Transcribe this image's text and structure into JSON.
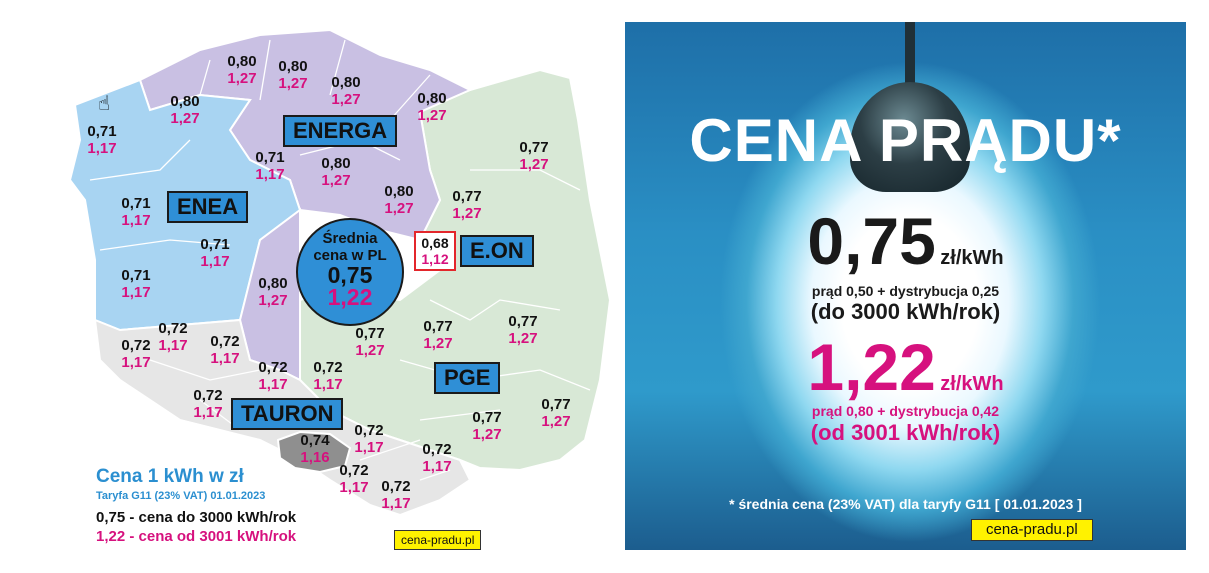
{
  "map": {
    "zones": [
      {
        "id": "energa",
        "label": "ENERGA",
        "color": "#c9c0e3"
      },
      {
        "id": "enea",
        "label": "ENEA",
        "color": "#a8d4f2"
      },
      {
        "id": "eon",
        "label": "E.ON",
        "color": "#2f8fd6"
      },
      {
        "id": "pge",
        "label": "PGE",
        "color": "#d8e8d6"
      },
      {
        "id": "tauron",
        "label": "TAURON",
        "color": "#e6e6e6"
      }
    ],
    "average": {
      "line1": "Średnia",
      "line2": "cena w PL",
      "low": "0,75",
      "high": "1,22"
    },
    "points": [
      {
        "lo": "0,80",
        "hi": "1,27"
      },
      {
        "lo": "0,80",
        "hi": "1,27"
      },
      {
        "lo": "0,80",
        "hi": "1,27"
      },
      {
        "lo": "0,80",
        "hi": "1,27"
      },
      {
        "lo": "0,80",
        "hi": "1,27"
      },
      {
        "lo": "0,71",
        "hi": "1,17"
      },
      {
        "lo": "0,71",
        "hi": "1,17"
      },
      {
        "lo": "0,80",
        "hi": "1,27"
      },
      {
        "lo": "0,77",
        "hi": "1,27"
      },
      {
        "lo": "0,80",
        "hi": "1,27"
      },
      {
        "lo": "0,71",
        "hi": "1,17"
      },
      {
        "lo": "0,77",
        "hi": "1,27"
      },
      {
        "lo": "0,71",
        "hi": "1,17"
      },
      {
        "lo": "0,71",
        "hi": "1,17"
      },
      {
        "lo": "0,80",
        "hi": "1,27"
      },
      {
        "lo": "0,72",
        "hi": "1,17"
      },
      {
        "lo": "0,72",
        "hi": "1,17"
      },
      {
        "lo": "0,72",
        "hi": "1,17"
      },
      {
        "lo": "0,77",
        "hi": "1,27"
      },
      {
        "lo": "0,77",
        "hi": "1,27"
      },
      {
        "lo": "0,77",
        "hi": "1,27"
      },
      {
        "lo": "0,72",
        "hi": "1,17"
      },
      {
        "lo": "0,72",
        "hi": "1,17"
      },
      {
        "lo": "0,72",
        "hi": "1,17"
      },
      {
        "lo": "0,72",
        "hi": "1,17"
      },
      {
        "lo": "0,77",
        "hi": "1,27"
      },
      {
        "lo": "0,77",
        "hi": "1,27"
      },
      {
        "lo": "0,74",
        "hi": "1,16"
      },
      {
        "lo": "0,72",
        "hi": "1,17"
      },
      {
        "lo": "0,72",
        "hi": "1,17"
      },
      {
        "lo": "0,72",
        "hi": "1,17"
      }
    ],
    "eon_point": {
      "lo": "0,68",
      "hi": "1,12"
    },
    "legend": {
      "title": "Cena 1 kWh w zł",
      "subtitle": "Taryfa G11 (23% VAT) 01.01.2023",
      "low_line": "0,75 - cena do 3000 kWh/rok",
      "high_line": "1,22 - cena od 3001 kWh/rok"
    },
    "site": "cena-pradu.pl"
  },
  "panel": {
    "title": "CENA PRĄDU*",
    "low": {
      "value": "0,75",
      "unit": "zł/kWh",
      "detail": "prąd 0,50 + dystrybucja 0,25",
      "range": "(do 3000 kWh/rok)"
    },
    "high": {
      "value": "1,22",
      "unit": "zł/kWh",
      "detail": "prąd 0,80 + dystrybucja 0,42",
      "range": "(od 3001 kWh/rok)"
    },
    "footnote": "* średnia cena (23% VAT) dla taryfy G11 [ 01.01.2023 ]",
    "site": "cena-pradu.pl"
  }
}
